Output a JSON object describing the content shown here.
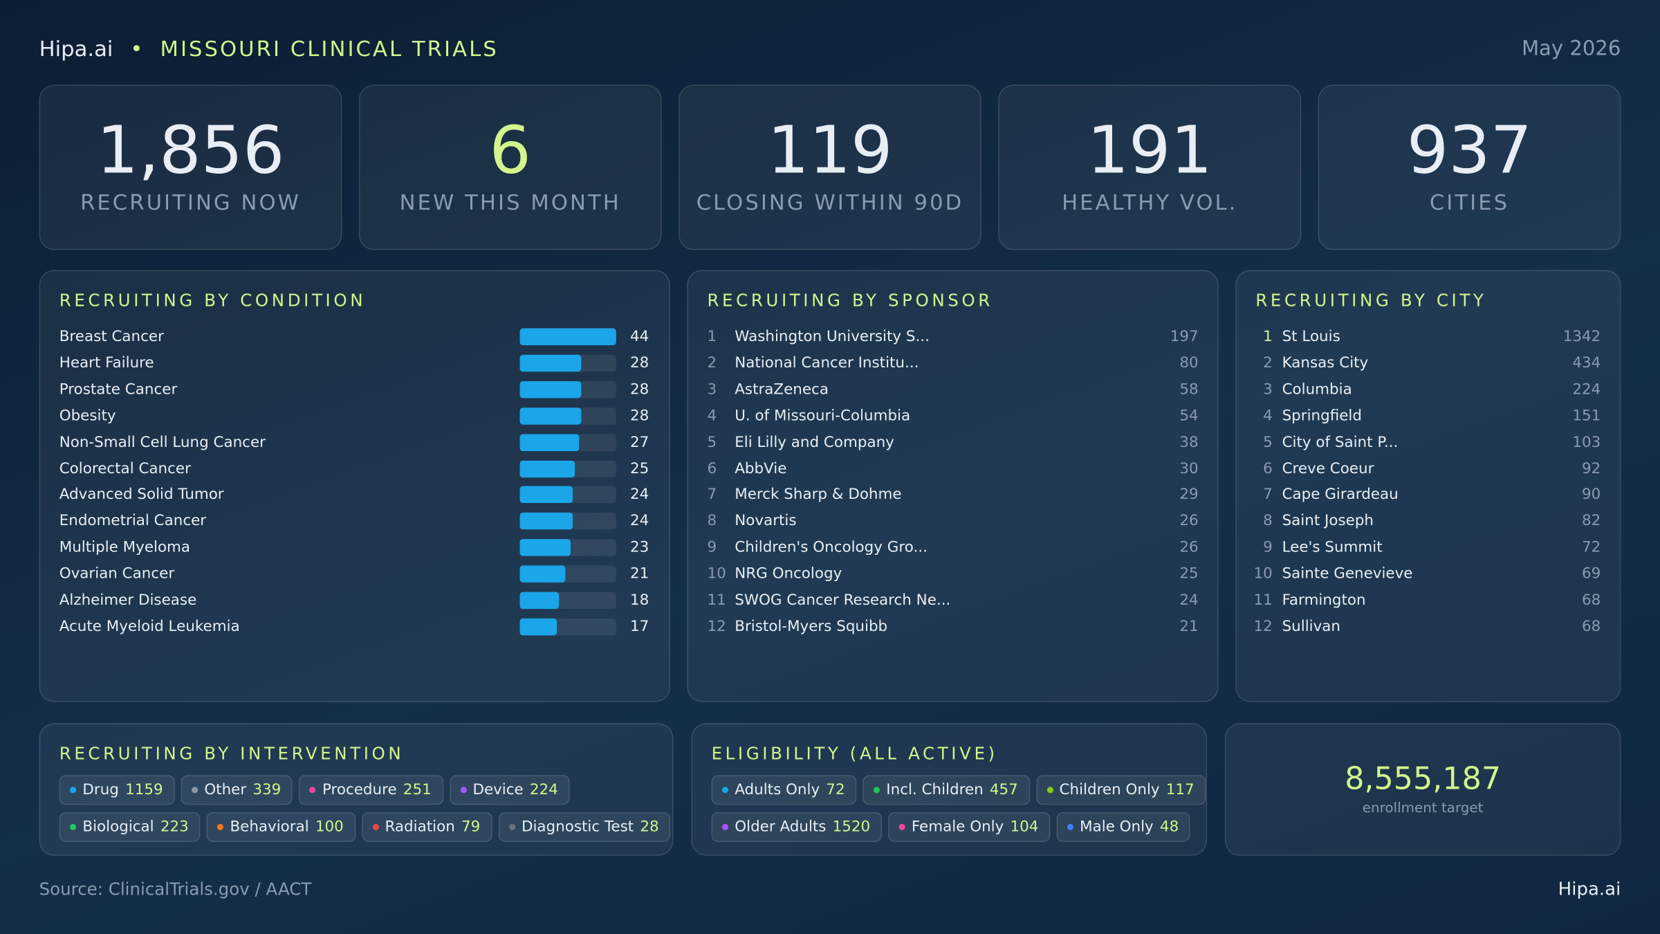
{
  "header": {
    "brand": "Hipa.ai",
    "title": "MISSOURI CLINICAL TRIALS",
    "date": "May 2026"
  },
  "kpis": [
    {
      "value": "1,856",
      "label": "RECRUITING NOW"
    },
    {
      "value": "6",
      "label": "NEW THIS MONTH",
      "highlight": true
    },
    {
      "value": "119",
      "label": "CLOSING WITHIN 90D"
    },
    {
      "value": "191",
      "label": "HEALTHY VOL."
    },
    {
      "value": "937",
      "label": "CITIES"
    }
  ],
  "conditions": {
    "title": "RECRUITING BY CONDITION",
    "color": "#1aa6e8",
    "rows": [
      {
        "name": "Breast Cancer",
        "value": 44
      },
      {
        "name": "Heart Failure",
        "value": 28
      },
      {
        "name": "Prostate Cancer",
        "value": 28
      },
      {
        "name": "Obesity",
        "value": 28
      },
      {
        "name": "Non-Small Cell Lung Cancer",
        "value": 27
      },
      {
        "name": "Colorectal Cancer",
        "value": 25
      },
      {
        "name": "Advanced Solid Tumor",
        "value": 24
      },
      {
        "name": "Endometrial Cancer",
        "value": 24
      },
      {
        "name": "Multiple Myeloma",
        "value": 23
      },
      {
        "name": "Ovarian Cancer",
        "value": 21
      },
      {
        "name": "Alzheimer Disease",
        "value": 18
      },
      {
        "name": "Acute Myeloid Leukemia",
        "value": 17
      }
    ]
  },
  "sponsors": {
    "title": "RECRUITING BY SPONSOR",
    "rows": [
      {
        "rank": 1,
        "name": "Washington University S...",
        "value": 197
      },
      {
        "rank": 2,
        "name": "National Cancer Institu...",
        "value": 80
      },
      {
        "rank": 3,
        "name": "AstraZeneca",
        "value": 58
      },
      {
        "rank": 4,
        "name": "U. of Missouri-Columbia",
        "value": 54
      },
      {
        "rank": 5,
        "name": "Eli Lilly and Company",
        "value": 38
      },
      {
        "rank": 6,
        "name": "AbbVie",
        "value": 30
      },
      {
        "rank": 7,
        "name": "Merck Sharp & Dohme",
        "value": 29
      },
      {
        "rank": 8,
        "name": "Novartis",
        "value": 26
      },
      {
        "rank": 9,
        "name": "Children's Oncology Gro...",
        "value": 26
      },
      {
        "rank": 10,
        "name": "NRG Oncology",
        "value": 25
      },
      {
        "rank": 11,
        "name": "SWOG Cancer Research Ne...",
        "value": 24
      },
      {
        "rank": 12,
        "name": "Bristol-Myers Squibb",
        "value": 21
      }
    ]
  },
  "cities": {
    "title": "RECRUITING BY CITY",
    "rows": [
      {
        "rank": 1,
        "name": "St Louis",
        "value": 1342
      },
      {
        "rank": 2,
        "name": "Kansas City",
        "value": 434
      },
      {
        "rank": 3,
        "name": "Columbia",
        "value": 224
      },
      {
        "rank": 4,
        "name": "Springfield",
        "value": 151
      },
      {
        "rank": 5,
        "name": "City of Saint P...",
        "value": 103
      },
      {
        "rank": 6,
        "name": "Creve Coeur",
        "value": 92
      },
      {
        "rank": 7,
        "name": "Cape Girardeau",
        "value": 90
      },
      {
        "rank": 8,
        "name": "Saint Joseph",
        "value": 82
      },
      {
        "rank": 9,
        "name": "Lee's Summit",
        "value": 72
      },
      {
        "rank": 10,
        "name": "Sainte Genevieve",
        "value": 69
      },
      {
        "rank": 11,
        "name": "Farmington",
        "value": 68
      },
      {
        "rank": 12,
        "name": "Sullivan",
        "value": 68
      }
    ]
  },
  "interventions": {
    "title": "RECRUITING BY INTERVENTION",
    "rows": [
      [
        {
          "name": "Drug",
          "value": 1159,
          "color": "#1aa6e8"
        },
        {
          "name": "Other",
          "value": 339,
          "color": "#8a96a3"
        },
        {
          "name": "Procedure",
          "value": 251,
          "color": "#ec4899"
        },
        {
          "name": "Device",
          "value": 224,
          "color": "#a855f7"
        }
      ],
      [
        {
          "name": "Biological",
          "value": 223,
          "color": "#22c55e"
        },
        {
          "name": "Behavioral",
          "value": 100,
          "color": "#f97316"
        },
        {
          "name": "Radiation",
          "value": 79,
          "color": "#ef4444"
        },
        {
          "name": "Diagnostic Test",
          "value": 28,
          "color": "#6b7280"
        }
      ]
    ]
  },
  "eligibility": {
    "title": "ELIGIBILITY (ALL ACTIVE)",
    "rows": [
      [
        {
          "name": "Adults Only",
          "value": 72,
          "color": "#1aa6e8"
        },
        {
          "name": "Incl. Children",
          "value": 457,
          "color": "#22c55e"
        },
        {
          "name": "Children Only",
          "value": 117,
          "color": "#84cc16"
        }
      ],
      [
        {
          "name": "Older Adults",
          "value": 1520,
          "color": "#a855f7"
        },
        {
          "name": "Female Only",
          "value": 104,
          "color": "#ec4899"
        },
        {
          "name": "Male Only",
          "value": 48,
          "color": "#3b82f6"
        }
      ]
    ]
  },
  "target": {
    "value": "8,555,187",
    "label": "enrollment target"
  },
  "footer": {
    "source": "Source: ClinicalTrials.gov / AACT",
    "brand": "Hipa.ai"
  }
}
